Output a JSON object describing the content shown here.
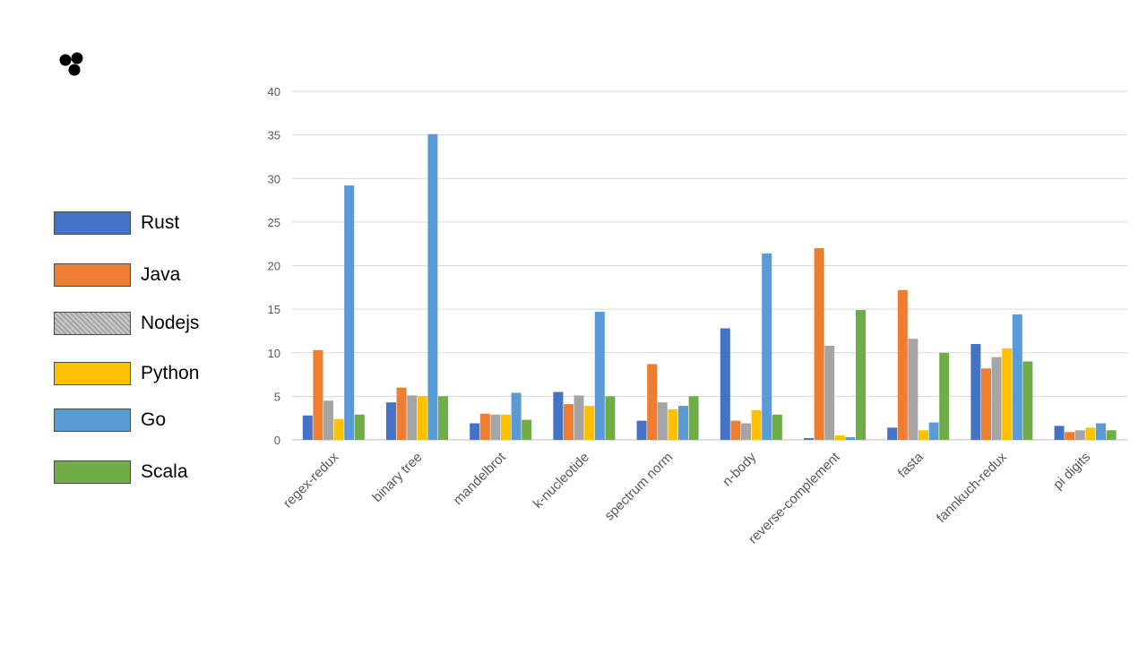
{
  "chart_data": {
    "type": "bar",
    "title": "",
    "xlabel": "",
    "ylabel": "",
    "ylim": [
      0,
      40
    ],
    "yticks": [
      0,
      5,
      10,
      15,
      20,
      25,
      30,
      35,
      40
    ],
    "grid": true,
    "legend_position": "left",
    "categories": [
      "regex-redux",
      "binary tree",
      "mandelbrot",
      "k-nucleotide",
      "spectrum norm",
      "n-body",
      "reverse-complement",
      "fasta",
      "fannkuch-redux",
      "pi digits"
    ],
    "series": [
      {
        "name": "Rust",
        "color": "#4472c4",
        "values": [
          2.8,
          4.3,
          1.9,
          5.5,
          2.2,
          12.8,
          0.2,
          1.4,
          11.0,
          1.6
        ]
      },
      {
        "name": "Java",
        "color": "#ed7d31",
        "values": [
          10.3,
          6.0,
          3.0,
          4.1,
          8.7,
          2.2,
          22.0,
          17.2,
          8.2,
          0.9
        ]
      },
      {
        "name": "Nodejs",
        "color": "#a5a5a5",
        "values": [
          4.5,
          5.1,
          2.9,
          5.1,
          4.3,
          1.9,
          10.8,
          11.6,
          9.5,
          1.1
        ]
      },
      {
        "name": "Python",
        "color": "#ffc000",
        "values": [
          2.4,
          5.0,
          2.9,
          3.9,
          3.5,
          3.4,
          0.5,
          1.1,
          10.5,
          1.4
        ]
      },
      {
        "name": "Go",
        "color": "#5b9bd5",
        "values": [
          29.2,
          35.1,
          5.4,
          14.7,
          3.9,
          21.4,
          0.3,
          2.0,
          14.4,
          1.9
        ]
      },
      {
        "name": "Scala",
        "color": "#70ad47",
        "values": [
          2.9,
          5.0,
          2.3,
          5.0,
          5.0,
          2.9,
          14.9,
          10.0,
          9.0,
          1.1
        ]
      }
    ]
  },
  "logo": {
    "icon": "three-dots-logo-icon"
  }
}
